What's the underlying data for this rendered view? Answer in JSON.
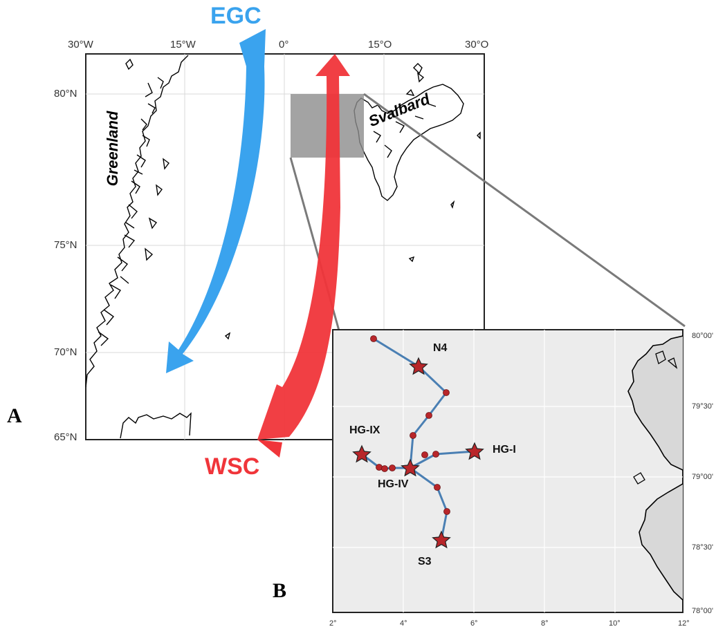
{
  "panel_a": {
    "letter": "A",
    "lon_ticks": [
      "30°W",
      "15°W",
      "0°",
      "15°O",
      "30°O"
    ],
    "lat_ticks": [
      "80°N",
      "75°N",
      "70°N",
      "65°N"
    ],
    "regions": [
      "Greenland",
      "Svalbard"
    ],
    "currents": [
      {
        "name": "EGC",
        "color": "#3aa3ee"
      },
      {
        "name": "WSC",
        "color": "#f0353a"
      }
    ],
    "land_color": "#000000",
    "grid_color": "#d9d9d9",
    "highlight_color": "#8c8c8c"
  },
  "panel_b": {
    "letter": "B",
    "lon_ticks": [
      "2°",
      "4°",
      "6°",
      "8°",
      "10°",
      "12°"
    ],
    "lat_ticks": [
      "80°00'",
      "79°30'",
      "79°00'",
      "78°30'",
      "78°00'"
    ],
    "stations": [
      "N4",
      "HG-IX",
      "HG-I",
      "HG-IV",
      "S3"
    ],
    "background_color": "#ececec",
    "track_color": "#4a7fb3",
    "marker_color": "#b8262a"
  }
}
